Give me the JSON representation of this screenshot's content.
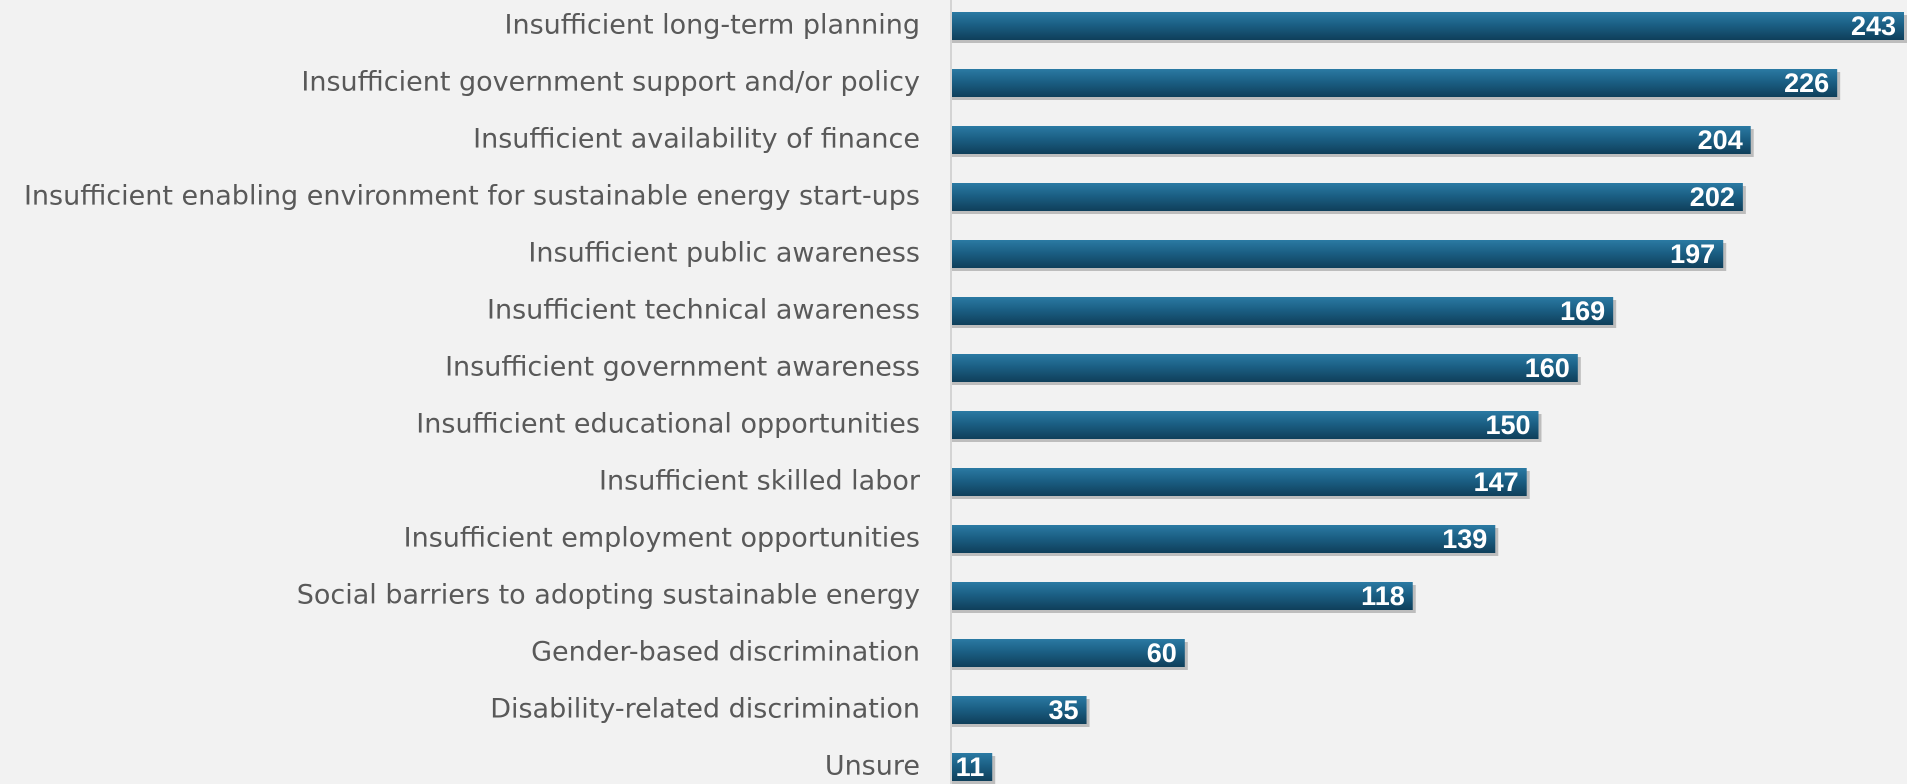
{
  "chart_data": {
    "type": "bar",
    "orientation": "horizontal",
    "categories": [
      "Insufficient long-term planning",
      "Insufficient government support and/or policy",
      "Insufficient availability of finance",
      "Insufficient enabling environment for sustainable energy start-ups",
      "Insufficient public awareness",
      "Insufficient technical awareness",
      "Insufficient government awareness",
      "Insufficient educational opportunities",
      "Insufficient skilled labor",
      "Insufficient employment opportunities",
      "Social barriers to adopting sustainable energy",
      "Gender-based discrimination",
      "Disability-related discrimination",
      "Unsure"
    ],
    "values": [
      243,
      226,
      204,
      202,
      197,
      169,
      160,
      150,
      147,
      139,
      118,
      60,
      35,
      11
    ],
    "xlim": [
      0,
      243
    ],
    "grid": false,
    "legend": "none",
    "colors": {
      "bar": "#1b5f84",
      "bar_highlight": "#2b7aa3",
      "bar_shadow": "#0f3f5a",
      "category_text": "#595959",
      "value_text": "#ffffff",
      "axis": "#d4d4d4",
      "background": "#f2f2f2"
    }
  }
}
